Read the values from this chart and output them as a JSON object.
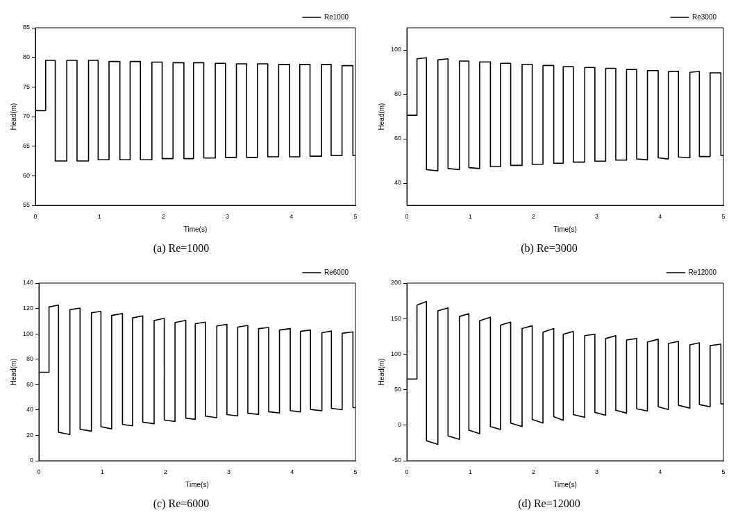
{
  "chart_data": [
    {
      "type": "line",
      "title": "(a) Re=1000",
      "xlabel": "Time(s)",
      "ylabel": "Head(m)",
      "xlim": [
        0,
        5
      ],
      "xticks": [
        0,
        1,
        2,
        3,
        4,
        5
      ],
      "ylim": [
        55,
        85
      ],
      "yticks": [
        55,
        60,
        65,
        70,
        75,
        80,
        85
      ],
      "grid": false,
      "legend": "top right",
      "marker": "none",
      "line_style": "solid",
      "series": [
        {
          "name": "Re1000",
          "color": "#000000",
          "x": [
            0,
            0.16,
            0.16,
            0.31,
            0.31,
            0.49,
            0.49,
            0.65,
            0.65,
            0.83,
            0.83,
            0.98,
            0.98,
            1.15,
            1.15,
            1.32,
            1.32,
            1.48,
            1.48,
            1.64,
            1.64,
            1.82,
            1.82,
            1.98,
            1.98,
            2.15,
            2.15,
            2.32,
            2.32,
            2.47,
            2.47,
            2.63,
            2.63,
            2.81,
            2.81,
            2.97,
            2.97,
            3.14,
            3.14,
            3.3,
            3.3,
            3.47,
            3.47,
            3.63,
            3.63,
            3.8,
            3.8,
            3.97,
            3.97,
            4.13,
            4.13,
            4.29,
            4.29,
            4.47,
            4.47,
            4.62,
            4.62,
            4.79,
            4.79,
            4.96,
            4.96,
            5
          ],
          "values": [
            71,
            71,
            79.5,
            79.5,
            62.5,
            62.5,
            79.5,
            79.5,
            62.5,
            62.5,
            79.5,
            79.5,
            62.7,
            62.7,
            79.3,
            79.3,
            62.7,
            62.7,
            79.3,
            79.3,
            62.7,
            62.7,
            79.2,
            79.2,
            62.9,
            62.9,
            79.1,
            79.1,
            62.9,
            62.9,
            79.1,
            79.1,
            63.0,
            63.0,
            79.0,
            79.0,
            63.1,
            63.1,
            78.9,
            78.9,
            63.1,
            63.1,
            78.9,
            78.9,
            63.2,
            63.2,
            78.8,
            78.8,
            63.2,
            63.2,
            78.8,
            78.8,
            63.3,
            63.3,
            78.8,
            78.8,
            63.4,
            63.4,
            78.6,
            78.6,
            63.4,
            63.4
          ]
        }
      ]
    },
    {
      "type": "line",
      "title": "(b) Re=3000",
      "xlabel": "Time(s)",
      "ylabel": "Head(m)",
      "xlim": [
        0,
        5
      ],
      "xticks": [
        0,
        1,
        2,
        3,
        4,
        5
      ],
      "ylim": [
        30,
        110
      ],
      "yticks": [
        40,
        60,
        80,
        100
      ],
      "grid": false,
      "legend": "top right",
      "marker": "none",
      "line_style": "solid",
      "series": [
        {
          "name": "Re3000",
          "color": "#000000",
          "x": [
            0,
            0.16,
            0.16,
            0.31,
            0.31,
            0.49,
            0.49,
            0.65,
            0.65,
            0.83,
            0.83,
            0.98,
            0.98,
            1.15,
            1.15,
            1.32,
            1.32,
            1.48,
            1.48,
            1.64,
            1.64,
            1.82,
            1.82,
            1.98,
            1.98,
            2.15,
            2.15,
            2.32,
            2.32,
            2.47,
            2.47,
            2.63,
            2.63,
            2.81,
            2.81,
            2.97,
            2.97,
            3.14,
            3.14,
            3.3,
            3.3,
            3.47,
            3.47,
            3.63,
            3.63,
            3.8,
            3.8,
            3.97,
            3.97,
            4.13,
            4.13,
            4.29,
            4.29,
            4.47,
            4.47,
            4.62,
            4.62,
            4.79,
            4.79,
            4.96,
            4.96,
            5
          ],
          "values": [
            70.6,
            70.6,
            96.0,
            96.5,
            46.1,
            45.6,
            95.5,
            96.0,
            46.6,
            46.1,
            95.0,
            95.0,
            47.0,
            46.6,
            94.6,
            94.6,
            47.4,
            47.4,
            94.0,
            94.0,
            48.0,
            48.0,
            93.5,
            93.5,
            48.5,
            48.5,
            93.0,
            93.0,
            49.0,
            49.0,
            92.5,
            92.5,
            49.5,
            49.5,
            92.1,
            92.1,
            49.9,
            49.9,
            91.7,
            91.7,
            50.4,
            50.4,
            91.2,
            91.2,
            50.9,
            50.5,
            90.7,
            90.7,
            51.4,
            50.9,
            90.2,
            90.4,
            51.8,
            51.4,
            89.9,
            90.3,
            52.0,
            52.0,
            89.7,
            89.7,
            52.4,
            52.4
          ]
        }
      ]
    },
    {
      "type": "line",
      "title": "(c) Re=6000",
      "xlabel": "Time(s)",
      "ylabel": "Head(m)",
      "xlim": [
        0,
        5
      ],
      "xticks": [
        0,
        1,
        2,
        3,
        4,
        5
      ],
      "ylim": [
        0,
        140
      ],
      "yticks": [
        0,
        20,
        40,
        60,
        80,
        100,
        120,
        140
      ],
      "grid": false,
      "legend": "top right",
      "marker": "none",
      "line_style": "solid",
      "series": [
        {
          "name": "Re6000",
          "color": "#000000",
          "x": [
            0,
            0.16,
            0.16,
            0.31,
            0.31,
            0.49,
            0.49,
            0.65,
            0.65,
            0.83,
            0.83,
            0.98,
            0.98,
            1.15,
            1.15,
            1.32,
            1.32,
            1.48,
            1.48,
            1.64,
            1.64,
            1.82,
            1.82,
            1.98,
            1.98,
            2.15,
            2.15,
            2.32,
            2.32,
            2.47,
            2.47,
            2.63,
            2.63,
            2.81,
            2.81,
            2.97,
            2.97,
            3.14,
            3.14,
            3.3,
            3.3,
            3.47,
            3.47,
            3.63,
            3.63,
            3.8,
            3.8,
            3.97,
            3.97,
            4.13,
            4.13,
            4.29,
            4.29,
            4.47,
            4.47,
            4.62,
            4.62,
            4.79,
            4.79,
            4.96,
            4.96,
            5
          ],
          "values": [
            69.7,
            69.7,
            121.2,
            122.6,
            22.4,
            20.6,
            119,
            120.3,
            24.7,
            23.3,
            116.6,
            117.7,
            26.8,
            25.1,
            114.5,
            116,
            28.6,
            27.5,
            112.6,
            114.2,
            30.4,
            29.1,
            110.5,
            112.2,
            32.1,
            30.9,
            108.9,
            110.6,
            33.5,
            32.6,
            108,
            109.2,
            35.1,
            33.9,
            106.2,
            107.5,
            36.4,
            35.3,
            105.3,
            106.6,
            37.4,
            36.5,
            104.1,
            105,
            38.6,
            37.6,
            103,
            104.1,
            39.5,
            38.5,
            102,
            103,
            40.4,
            39.4,
            100.9,
            102.2,
            41.3,
            40.2,
            100.4,
            101.6,
            41.8,
            41.8
          ]
        }
      ]
    },
    {
      "type": "line",
      "title": "(d) Re=12000",
      "xlabel": "Time(s)",
      "ylabel": "Head(m)",
      "xlim": [
        0,
        5
      ],
      "xticks": [
        0,
        1,
        2,
        3,
        4,
        5
      ],
      "ylim": [
        -50,
        200
      ],
      "yticks": [
        -50,
        0,
        50,
        100,
        150,
        200
      ],
      "grid": false,
      "legend": "top right",
      "marker": "none",
      "line_style": "solid",
      "series": [
        {
          "name": "Re12000",
          "color": "#000000",
          "x": [
            0,
            0.16,
            0.16,
            0.31,
            0.31,
            0.49,
            0.49,
            0.65,
            0.65,
            0.83,
            0.83,
            0.98,
            0.98,
            1.15,
            1.15,
            1.32,
            1.32,
            1.48,
            1.48,
            1.64,
            1.64,
            1.82,
            1.82,
            1.98,
            1.98,
            2.15,
            2.15,
            2.32,
            2.32,
            2.47,
            2.47,
            2.63,
            2.63,
            2.81,
            2.81,
            2.97,
            2.97,
            3.14,
            3.14,
            3.3,
            3.3,
            3.47,
            3.47,
            3.63,
            3.63,
            3.8,
            3.8,
            3.97,
            3.97,
            4.13,
            4.13,
            4.29,
            4.29,
            4.47,
            4.47,
            4.62,
            4.62,
            4.79,
            4.79,
            4.96,
            4.96,
            5
          ],
          "values": [
            65,
            65,
            169,
            174,
            -22,
            -27,
            161,
            165,
            -15,
            -20,
            153,
            157,
            -7,
            -12,
            147,
            152,
            -2,
            -6,
            141,
            145,
            3,
            -2,
            136,
            140,
            8,
            3,
            131,
            136,
            12,
            7,
            128,
            132,
            15,
            11,
            126,
            128,
            18,
            14,
            122,
            126,
            21,
            17,
            120,
            122,
            23,
            20,
            117,
            121,
            26,
            22,
            115,
            118,
            28,
            24,
            113,
            116,
            29,
            26,
            112,
            114,
            30,
            30
          ]
        }
      ]
    }
  ]
}
